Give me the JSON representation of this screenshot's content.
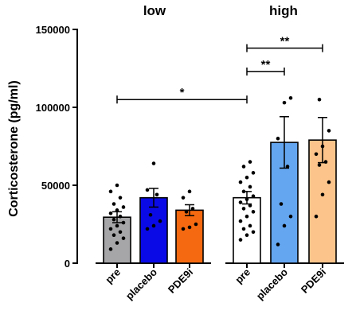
{
  "chart_data": {
    "type": "bar",
    "title": "",
    "xlabel": "",
    "ylabel": "Corticosterone (pg/ml)",
    "ylim": [
      0,
      150000
    ],
    "yticks": [
      "0",
      "50000",
      "100000",
      "150000"
    ],
    "grid": false,
    "groups": [
      {
        "label": "low",
        "bars": [
          {
            "category": "pre",
            "mean": 29500,
            "sem": 3500,
            "color": "#a6a6a8",
            "points": [
              9000,
              13000,
              16000,
              18000,
              20000,
              22000,
              24000,
              26000,
              28000,
              30000,
              32000,
              34000,
              36000,
              38000,
              42000,
              46000,
              50000
            ]
          },
          {
            "category": "placebo",
            "mean": 42000,
            "sem": 6000,
            "color": "#0a0ae6",
            "points": [
              22000,
              24000,
              27000,
              31000,
              44000,
              47000,
              64000
            ]
          },
          {
            "category": "PDE9i",
            "mean": 34000,
            "sem": 3500,
            "color": "#f56a10",
            "points": [
              22000,
              23000,
              25000,
              33000,
              35000,
              42000,
              46000
            ]
          }
        ]
      },
      {
        "label": "high",
        "bars": [
          {
            "category": "pre",
            "mean": 42000,
            "sem": 4000,
            "color": "#ffffff",
            "points": [
              15000,
              18000,
              20000,
              22000,
              24000,
              27000,
              30000,
              33000,
              35000,
              37000,
              39000,
              41000,
              43000,
              46000,
              49000,
              52000,
              55000,
              58000,
              62000,
              65000
            ]
          },
          {
            "category": "placebo",
            "mean": 77500,
            "sem": 16500,
            "color": "#64a6f0",
            "points": [
              12000,
              24000,
              30000,
              38000,
              62000,
              80000,
              103000,
              106000
            ]
          },
          {
            "category": "PDE9i",
            "mean": 79000,
            "sem": 14500,
            "color": "#fcc48a",
            "points": [
              30000,
              44000,
              52000,
              63000,
              65000,
              70000,
              75000,
              85000,
              105000
            ]
          }
        ]
      }
    ],
    "significance": [
      {
        "from": "low.pre",
        "to": "high.pre",
        "y": 105000,
        "label": "*"
      },
      {
        "from": "high.pre",
        "to": "high.placebo",
        "y": 123000,
        "label": "**"
      },
      {
        "from": "high.pre",
        "to": "high.PDE9i",
        "y": 138000,
        "label": "**"
      }
    ]
  }
}
